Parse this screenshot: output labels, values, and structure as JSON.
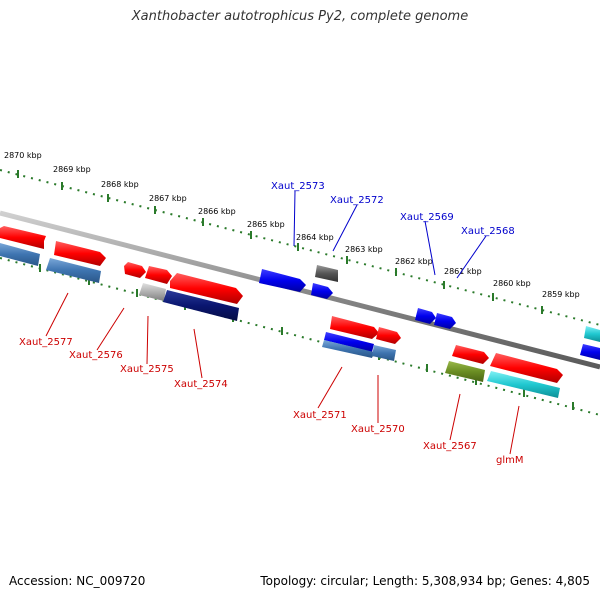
{
  "title": "Xanthobacter autotrophicus Py2, complete genome",
  "accession": "Accession: NC_009720",
  "topology": "Topology: circular; Length: 5,308,934 bp; Genes: 4,805",
  "colors": {
    "backbone": "#888888",
    "ticks": "#2a7a2a",
    "forward_gene": "#ff1a1a",
    "forward_blue": "#1010ee",
    "reverse_blue": "#4a7fb5",
    "reverse_navy": "#0a1a7a",
    "reverse_olive": "#6b8e23",
    "reverse_cyan": "#20c8d0",
    "reverse_gray": "#b0b0b0",
    "gray_box": "#555555",
    "label_top": "#0000cc",
    "label_bottom": "#cc0000"
  },
  "kbp_labels": [
    "2870 kbp",
    "2869 kbp",
    "2868 kbp",
    "2867 kbp",
    "2866 kbp",
    "2865 kbp",
    "2864 kbp",
    "2863 kbp",
    "2862 kbp",
    "2861 kbp",
    "2860 kbp",
    "2859 kbp"
  ],
  "top_labels": [
    "Xaut_2573",
    "Xaut_2572",
    "Xaut_2569",
    "Xaut_2568"
  ],
  "bottom_labels": [
    "Xaut_2577",
    "Xaut_2576",
    "Xaut_2575",
    "Xaut_2574",
    "Xaut_2571",
    "Xaut_2570",
    "Xaut_2567",
    "glmM"
  ]
}
